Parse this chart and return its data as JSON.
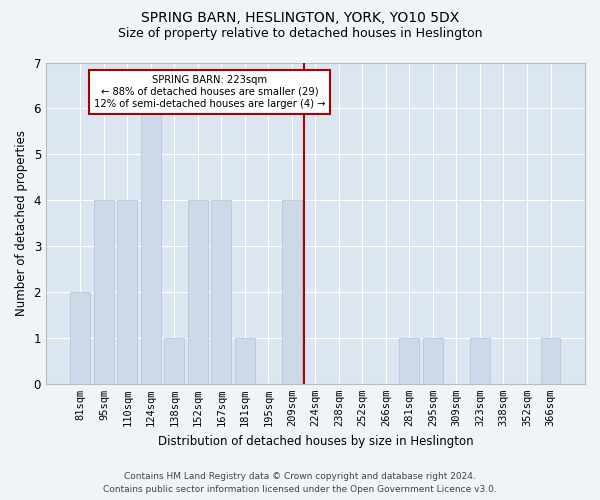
{
  "title": "SPRING BARN, HESLINGTON, YORK, YO10 5DX",
  "subtitle": "Size of property relative to detached houses in Heslington",
  "xlabel": "Distribution of detached houses by size in Heslington",
  "ylabel": "Number of detached properties",
  "categories": [
    "81sqm",
    "95sqm",
    "110sqm",
    "124sqm",
    "138sqm",
    "152sqm",
    "167sqm",
    "181sqm",
    "195sqm",
    "209sqm",
    "224sqm",
    "238sqm",
    "252sqm",
    "266sqm",
    "281sqm",
    "295sqm",
    "309sqm",
    "323sqm",
    "338sqm",
    "352sqm",
    "366sqm"
  ],
  "values": [
    2,
    4,
    4,
    6,
    1,
    4,
    4,
    1,
    0,
    4,
    0,
    0,
    0,
    0,
    1,
    1,
    0,
    1,
    0,
    0,
    1
  ],
  "bar_color": "#ccd9e8",
  "bar_edgecolor": "#b0c4d8",
  "annotation_text_line1": "SPRING BARN: 223sqm",
  "annotation_text_line2": "← 88% of detached houses are smaller (29)",
  "annotation_text_line3": "12% of semi-detached houses are larger (4) →",
  "annotation_box_color": "#aa0000",
  "vline_color": "#aa0000",
  "vline_x": 9.5,
  "ylim": [
    0,
    7
  ],
  "yticks": [
    0,
    1,
    2,
    3,
    4,
    5,
    6,
    7
  ],
  "fig_facecolor": "#f0f4f8",
  "ax_facecolor": "#dce6f0",
  "grid_color": "#ffffff",
  "footer_line1": "Contains HM Land Registry data © Crown copyright and database right 2024.",
  "footer_line2": "Contains public sector information licensed under the Open Government Licence v3.0."
}
